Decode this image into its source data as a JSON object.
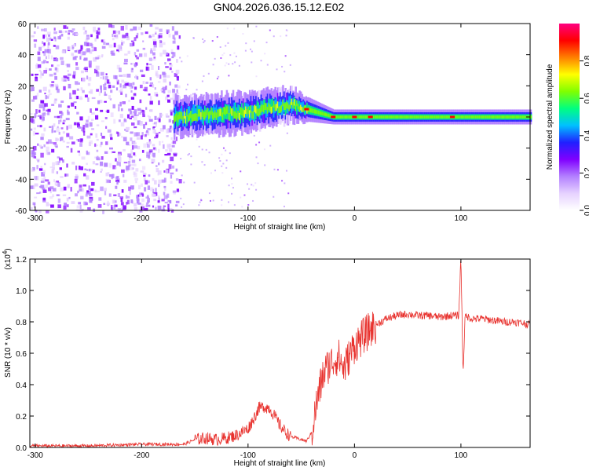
{
  "figure": {
    "title": "GN04.2026.036.15.12.E02"
  },
  "chart_data": [
    {
      "type": "heatmap",
      "name": "spectrogram",
      "xlabel": "Height of straight line (km)",
      "ylabel": "Frequency (Hz)",
      "xlim": [
        -305,
        165
      ],
      "ylim": [
        -60,
        60
      ],
      "xticks": [
        -300,
        -200,
        -100,
        0,
        100
      ],
      "yticks": [
        -60,
        -40,
        -20,
        0,
        20,
        40,
        60
      ],
      "colorbar": {
        "label": "Normalized spectral amplitude",
        "range": [
          0,
          1
        ],
        "ticks": [
          "0.0",
          "0.2",
          "0.4",
          "0.6",
          "0.8"
        ],
        "tick_values": [
          0,
          0.2,
          0.4,
          0.6,
          0.8
        ],
        "colors": [
          "#ffffff",
          "#e6d2ff",
          "#b380ff",
          "#8000ff",
          "#2020ff",
          "#00c0ff",
          "#00ff80",
          "#80ff00",
          "#ffff00",
          "#ff8000",
          "#ff0000",
          "#ff0080"
        ]
      },
      "features": {
        "noise_region_x": [
          -305,
          -165
        ],
        "sparse_region_x": [
          -165,
          -60
        ],
        "signal_band": [
          {
            "x": -170,
            "center_hz": 0,
            "halfwidth_hz": 8
          },
          {
            "x": -100,
            "center_hz": 3,
            "halfwidth_hz": 8
          },
          {
            "x": -60,
            "center_hz": 8,
            "halfwidth_hz": 7
          },
          {
            "x": -45,
            "center_hz": 5,
            "halfwidth_hz": 5
          },
          {
            "x": -20,
            "center_hz": 0,
            "halfwidth_hz": 3
          },
          {
            "x": 165,
            "center_hz": 0,
            "halfwidth_hz": 3
          }
        ],
        "peak_markers_x": [
          -45,
          -20,
          0,
          15,
          92
        ]
      }
    },
    {
      "type": "line",
      "name": "snr",
      "xlabel": "Height of straight line (km)",
      "ylabel": "SNR (10 * v/v)",
      "scale_label": "(x10^4)",
      "scale_base": "(x10",
      "scale_exp": "4",
      "scale_close": ")",
      "xlim": [
        -305,
        165
      ],
      "ylim": [
        0,
        1.2
      ],
      "xticks": [
        -300,
        -200,
        -100,
        0,
        100
      ],
      "yticks": [
        "0.0",
        "0.2",
        "0.4",
        "0.6",
        "0.8",
        "1.0",
        "1.2"
      ],
      "ytick_values": [
        0,
        0.2,
        0.4,
        0.6,
        0.8,
        1.0,
        1.2
      ],
      "color": "#e8322e",
      "series": [
        {
          "name": "SNR",
          "x": [
            -305,
            -250,
            -200,
            -160,
            -150,
            -140,
            -130,
            -120,
            -110,
            -100,
            -95,
            -90,
            -85,
            -80,
            -75,
            -70,
            -65,
            -60,
            -55,
            -50,
            -45,
            -40,
            -35,
            -30,
            -25,
            -20,
            -15,
            -10,
            -5,
            0,
            10,
            20,
            30,
            40,
            50,
            60,
            70,
            80,
            90,
            98,
            100,
            102,
            104,
            110,
            120,
            130,
            140,
            150,
            160,
            165
          ],
          "y": [
            0.01,
            0.01,
            0.02,
            0.02,
            0.05,
            0.06,
            0.05,
            0.06,
            0.08,
            0.12,
            0.18,
            0.25,
            0.26,
            0.25,
            0.2,
            0.14,
            0.1,
            0.07,
            0.06,
            0.05,
            0.04,
            0.1,
            0.3,
            0.45,
            0.52,
            0.55,
            0.58,
            0.5,
            0.58,
            0.65,
            0.72,
            0.78,
            0.82,
            0.84,
            0.85,
            0.84,
            0.84,
            0.83,
            0.84,
            0.84,
            1.22,
            0.47,
            0.84,
            0.82,
            0.82,
            0.81,
            0.8,
            0.8,
            0.79,
            0.78
          ]
        }
      ]
    }
  ]
}
